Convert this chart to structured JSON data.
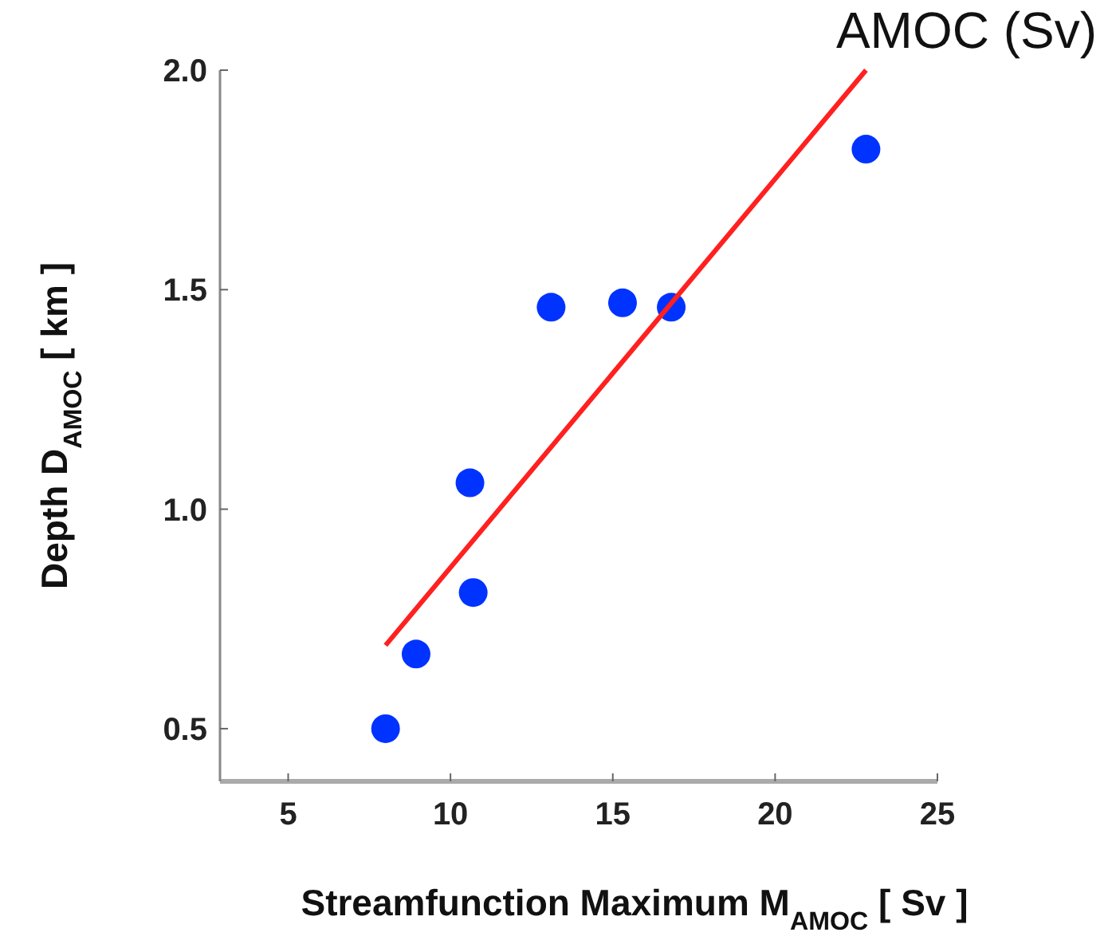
{
  "chart_data": {
    "type": "scatter",
    "title": "AMOC (Sv)",
    "xlabel": "Streamfunction Maximum  M$_{AMOC}$ [ Sv ]",
    "ylabel": "Depth  D$_{AMOC}$ [ km ]",
    "xlim": [
      2.9,
      25
    ],
    "ylim": [
      0.38,
      2.0
    ],
    "xticks": [
      5,
      10,
      15,
      20,
      25
    ],
    "yticks": [
      {
        "value": 0.5,
        "label": "0.5"
      },
      {
        "value": 1.0,
        "label": "1.0"
      },
      {
        "value": 1.5,
        "label": "1.5"
      },
      {
        "value": 2.0,
        "label": "2.0"
      }
    ],
    "grid": false,
    "series": [
      {
        "color": "#0033ff",
        "marker": "circle",
        "x": [
          8.0,
          8.94,
          10.6,
          10.7,
          13.1,
          15.3,
          16.8,
          22.8
        ],
        "values": [
          0.5,
          0.67,
          1.06,
          0.81,
          1.46,
          1.47,
          1.46,
          1.82
        ]
      },
      {
        "type": "line",
        "color": "#ff2020",
        "marker": "none",
        "line_style": "solid",
        "x": [
          8.0,
          22.8
        ],
        "values": [
          0.69,
          2.0
        ]
      }
    ]
  }
}
